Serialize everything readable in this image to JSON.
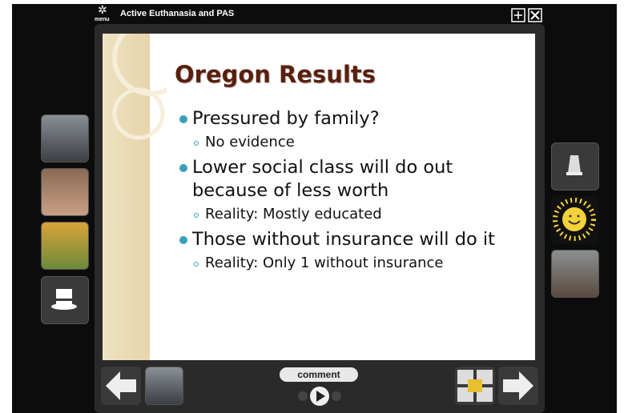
{
  "header": {
    "menu_label": "menu",
    "title": "Active Euthanasia and PAS"
  },
  "slide": {
    "title": "Oregon Results",
    "bullets": [
      {
        "text": "Pressured by family?",
        "sub": [
          "No evidence"
        ]
      },
      {
        "text": "Lower social class will do out because of less worth",
        "sub": [
          "Reality: Mostly educated"
        ]
      },
      {
        "text": "Those without insurance will do it",
        "sub": [
          "Reality: Only 1 without insurance"
        ]
      }
    ]
  },
  "controls": {
    "comment_label": "comment"
  }
}
